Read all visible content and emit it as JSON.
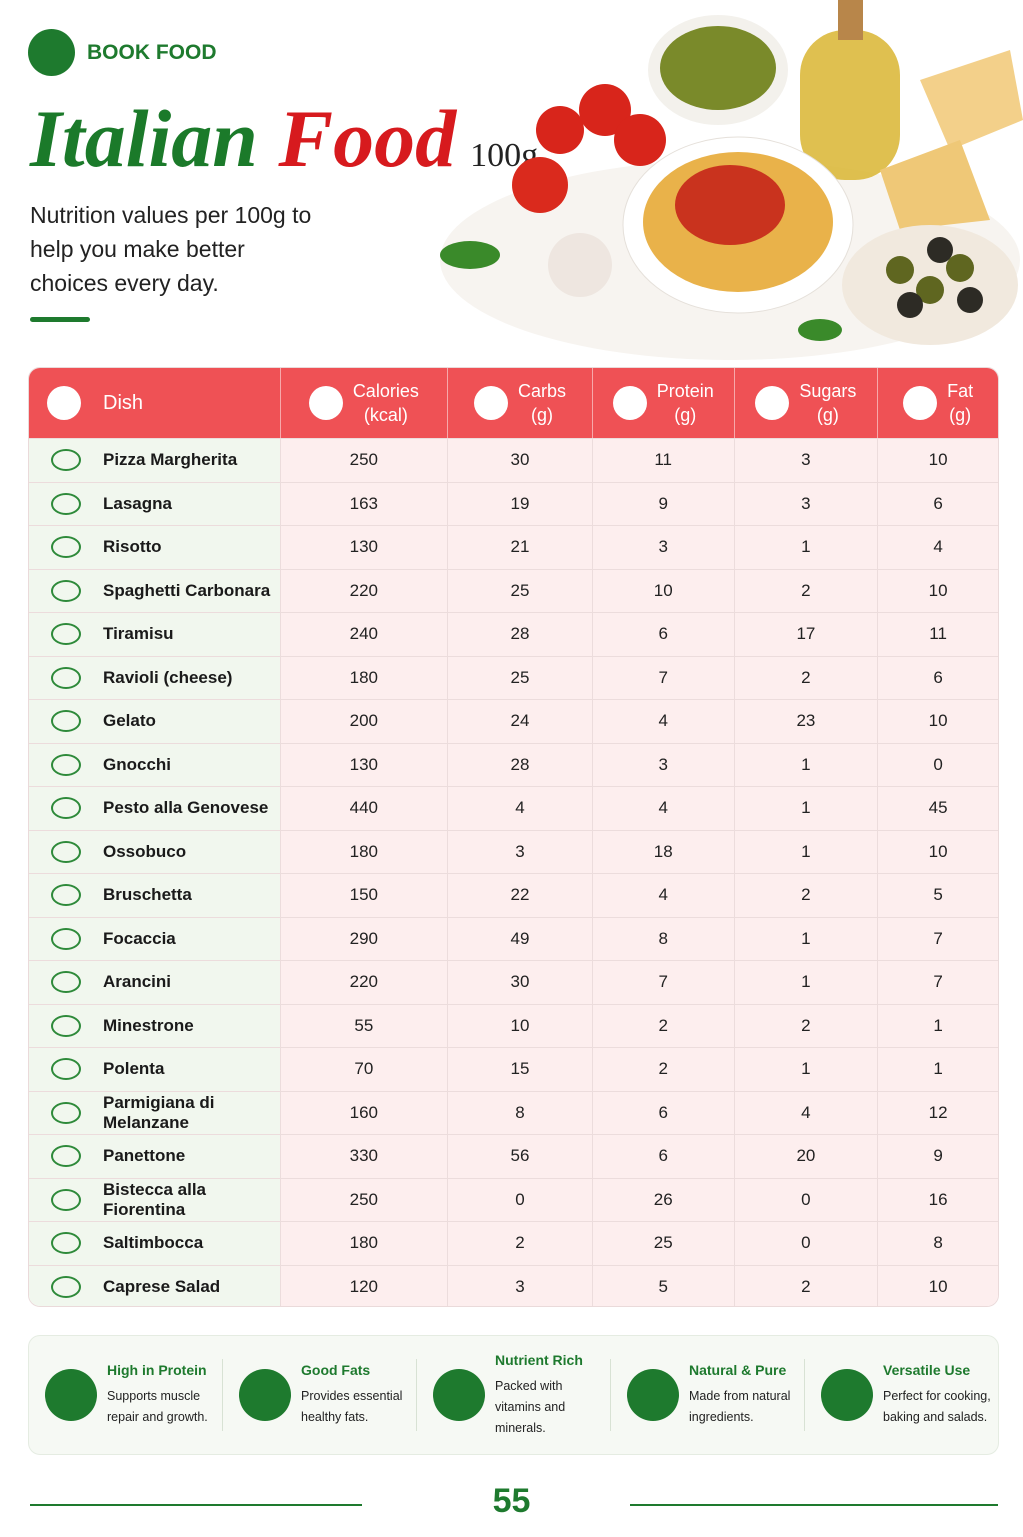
{
  "header": {
    "brand": "BOOK FOOD",
    "title_first": "Italian",
    "title_second": "Food",
    "title_suffix": "100g",
    "subtitle": "Nutrition values per 100g to help you make better choices every day."
  },
  "table": {
    "columns": [
      {
        "name": "Dish"
      },
      {
        "name": "Calories",
        "unit": "(kcal)"
      },
      {
        "name": "Carbs",
        "unit": "(g)"
      },
      {
        "name": "Protein",
        "unit": "(g)"
      },
      {
        "name": "Sugars",
        "unit": "(g)"
      },
      {
        "name": "Fat",
        "unit": "(g)"
      }
    ],
    "rows": [
      [
        "Pizza Margherita",
        250,
        30,
        11,
        3,
        10
      ],
      [
        "Lasagna",
        163,
        19,
        9,
        3,
        6
      ],
      [
        "Risotto",
        130,
        21,
        3,
        1,
        4
      ],
      [
        "Spaghetti Carbonara",
        220,
        25,
        10,
        2,
        10
      ],
      [
        "Tiramisu",
        240,
        28,
        6,
        17,
        11
      ],
      [
        "Ravioli (cheese)",
        180,
        25,
        7,
        2,
        6
      ],
      [
        "Gelato",
        200,
        24,
        4,
        23,
        10
      ],
      [
        "Gnocchi",
        130,
        28,
        3,
        1,
        0
      ],
      [
        "Pesto alla Genovese",
        440,
        4,
        4,
        1,
        45
      ],
      [
        "Ossobuco",
        180,
        3,
        18,
        1,
        10
      ],
      [
        "Bruschetta",
        150,
        22,
        4,
        2,
        5
      ],
      [
        "Focaccia",
        290,
        49,
        8,
        1,
        7
      ],
      [
        "Arancini",
        220,
        30,
        7,
        1,
        7
      ],
      [
        "Minestrone",
        55,
        10,
        2,
        2,
        1
      ],
      [
        "Polenta",
        70,
        15,
        2,
        1,
        1
      ],
      [
        "Parmigiana di Melanzane",
        160,
        8,
        6,
        4,
        12
      ],
      [
        "Panettone",
        330,
        56,
        6,
        20,
        9
      ],
      [
        "Bistecca alla Fiorentina",
        250,
        0,
        26,
        0,
        16
      ],
      [
        "Saltimbocca",
        180,
        2,
        25,
        0,
        8
      ],
      [
        "Caprese Salad",
        120,
        3,
        5,
        2,
        10
      ]
    ]
  },
  "features": [
    {
      "title": "High in Protein",
      "text": "Supports muscle repair and growth."
    },
    {
      "title": "Good Fats",
      "text": "Provides essential healthy fats."
    },
    {
      "title": "Nutrient Rich",
      "text": "Packed with vitamins and minerals."
    },
    {
      "title": "Natural & Pure",
      "text": "Made from natural ingredients."
    },
    {
      "title": "Versatile Use",
      "text": "Perfect for cooking, baking and salads."
    }
  ],
  "page_number": 55
}
